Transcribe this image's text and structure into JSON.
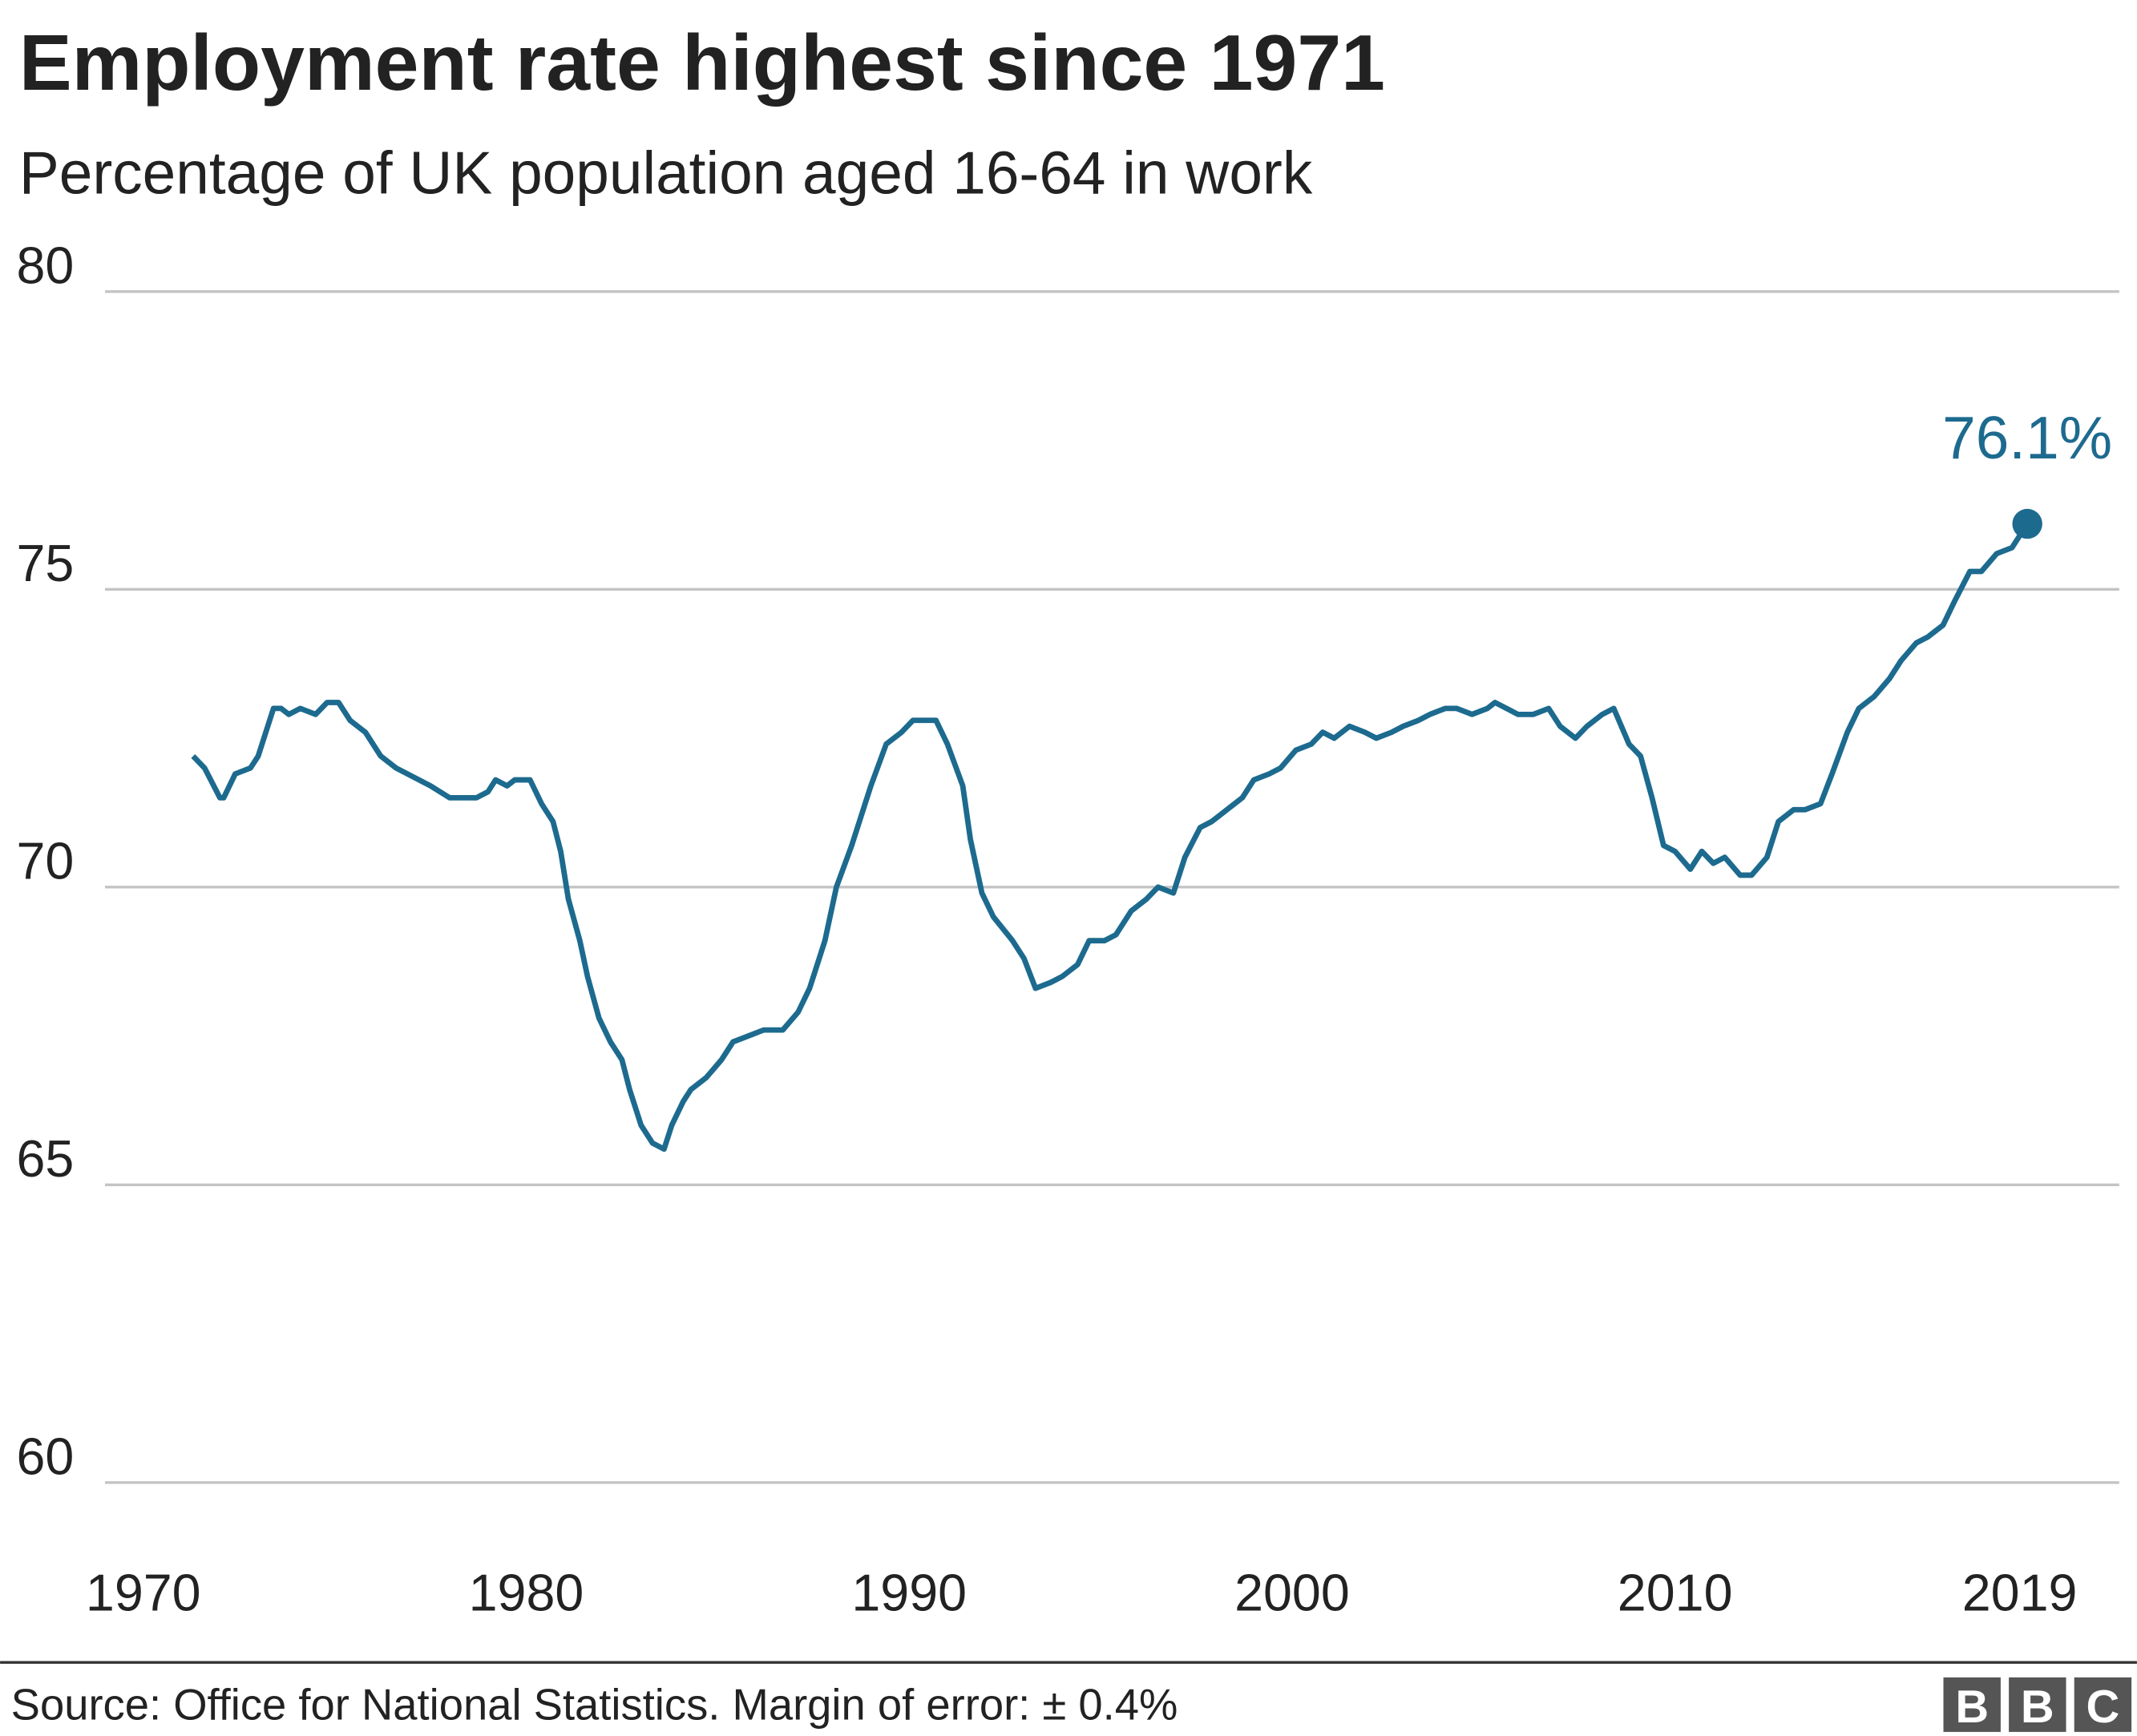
{
  "chart_data": {
    "type": "line",
    "title": "Employment rate highest since 1971",
    "subtitle": "Percentage of UK population aged 16-64 in work",
    "x": [
      1971.3,
      1971.6,
      1972.0,
      1972.1,
      1972.4,
      1972.8,
      1973.0,
      1973.4,
      1973.6,
      1973.8,
      1974.1,
      1974.5,
      1974.8,
      1975.1,
      1975.4,
      1975.8,
      1976.2,
      1976.6,
      1976.9,
      1977.5,
      1978.0,
      1978.7,
      1979.0,
      1979.2,
      1979.5,
      1979.7,
      1980.1,
      1980.4,
      1980.7,
      1980.9,
      1981.1,
      1981.4,
      1981.6,
      1981.9,
      1982.2,
      1982.5,
      1982.7,
      1983.0,
      1983.3,
      1983.6,
      1983.8,
      1984.1,
      1984.3,
      1984.7,
      1985.1,
      1985.4,
      1985.8,
      1986.2,
      1986.7,
      1987.1,
      1987.4,
      1987.8,
      1988.1,
      1988.5,
      1988.8,
      1989.0,
      1989.4,
      1989.8,
      1990.1,
      1990.7,
      1991.0,
      1991.4,
      1991.6,
      1991.9,
      1992.2,
      1992.7,
      1993.0,
      1993.3,
      1993.7,
      1994.0,
      1994.4,
      1994.7,
      1995.1,
      1995.4,
      1995.8,
      1996.2,
      1996.5,
      1996.9,
      1997.2,
      1997.6,
      1997.9,
      1998.3,
      1998.7,
      1999.0,
      1999.4,
      1999.7,
      2000.1,
      2000.5,
      2000.8,
      2001.1,
      2001.5,
      2001.9,
      2002.2,
      2002.6,
      2002.9,
      2003.3,
      2003.6,
      2004.0,
      2004.3,
      2004.7,
      2005.1,
      2005.3,
      2005.6,
      2005.9,
      2006.3,
      2006.7,
      2007.0,
      2007.4,
      2007.7,
      2008.1,
      2008.4,
      2008.8,
      2009.1,
      2009.4,
      2009.7,
      2010.0,
      2010.4,
      2010.7,
      2011.0,
      2011.3,
      2011.7,
      2012.0,
      2012.4,
      2012.7,
      2013.1,
      2013.4,
      2013.8,
      2014.1,
      2014.5,
      2014.8,
      2015.2,
      2015.6,
      2015.9,
      2016.3,
      2016.6,
      2017.0,
      2017.3,
      2017.7,
      2018.0,
      2018.4,
      2018.8,
      2019.2
    ],
    "values": [
      72.2,
      72.0,
      71.5,
      71.5,
      71.9,
      72.0,
      72.2,
      73.0,
      73.0,
      72.9,
      73.0,
      72.9,
      73.1,
      73.1,
      72.8,
      72.6,
      72.2,
      72.0,
      71.9,
      71.7,
      71.5,
      71.5,
      71.6,
      71.8,
      71.7,
      71.8,
      71.8,
      71.4,
      71.1,
      70.6,
      69.8,
      69.1,
      68.5,
      67.8,
      67.4,
      67.1,
      66.6,
      66.0,
      65.7,
      65.6,
      66.0,
      66.4,
      66.6,
      66.8,
      67.1,
      67.4,
      67.5,
      67.6,
      67.6,
      67.9,
      68.3,
      69.1,
      70.0,
      70.7,
      71.3,
      71.7,
      72.4,
      72.6,
      72.8,
      72.8,
      72.4,
      71.7,
      70.8,
      69.9,
      69.5,
      69.1,
      68.8,
      68.3,
      68.4,
      68.5,
      68.7,
      69.1,
      69.1,
      69.2,
      69.6,
      69.8,
      70.0,
      69.9,
      70.5,
      71.0,
      71.1,
      71.3,
      71.5,
      71.8,
      71.9,
      72.0,
      72.3,
      72.4,
      72.6,
      72.5,
      72.7,
      72.6,
      72.5,
      72.6,
      72.7,
      72.8,
      72.9,
      73.0,
      73.0,
      72.9,
      73.0,
      73.1,
      73.0,
      72.9,
      72.9,
      73.0,
      72.7,
      72.5,
      72.7,
      72.9,
      73.0,
      72.4,
      72.2,
      71.5,
      70.7,
      70.6,
      70.3,
      70.6,
      70.4,
      70.5,
      70.2,
      70.2,
      70.5,
      71.1,
      71.3,
      71.3,
      71.4,
      71.9,
      72.6,
      73.0,
      73.2,
      73.5,
      73.8,
      74.1,
      74.2,
      74.4,
      74.8,
      75.3,
      75.3,
      75.6,
      75.7,
      76.1
    ],
    "color": "#1d6a8f",
    "end_label": "76.1%",
    "xlim": [
      1969.0,
      2021.6
    ],
    "xticks": [
      1970,
      1980,
      1990,
      2000,
      2010,
      2019
    ],
    "ylim": [
      60,
      80
    ],
    "yticks": [
      60,
      65,
      70,
      75,
      80
    ],
    "grid": true,
    "source": "Source: Office for National Statistics. Margin of error: ± 0.4%",
    "logo": [
      "B",
      "B",
      "C"
    ]
  }
}
